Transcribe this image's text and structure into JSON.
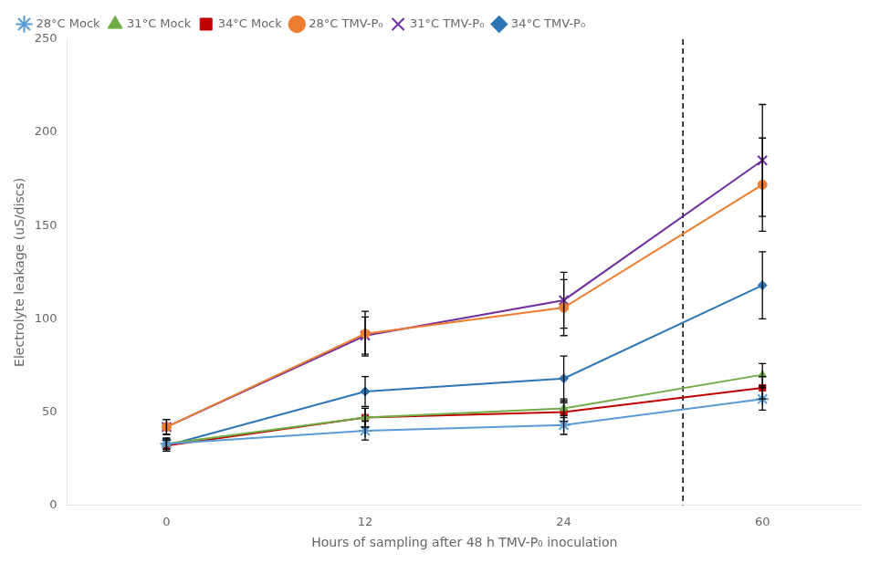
{
  "chart_data": {
    "type": "line",
    "categories": [
      "0",
      "12",
      "24",
      "60"
    ],
    "series": [
      {
        "name": "28°C Mock",
        "color": "#5B9BD5",
        "marker": "star",
        "values": [
          33,
          40,
          43,
          57
        ],
        "yerr": [
          3,
          5,
          5,
          6
        ]
      },
      {
        "name": "31°C Mock",
        "color": "#70AD47",
        "marker": "triangle",
        "values": [
          33,
          47,
          52,
          70
        ],
        "yerr": [
          3,
          5,
          5,
          6
        ]
      },
      {
        "name": "34°C Mock",
        "color": "#C00000",
        "marker": "square",
        "values": [
          32,
          47,
          50,
          63
        ],
        "yerr": [
          3,
          5,
          5,
          6
        ]
      },
      {
        "name": "28°C TMV-P₀",
        "color": "#ED7D31",
        "marker": "circle",
        "values": [
          42,
          92,
          106,
          172
        ],
        "yerr": [
          4,
          12,
          15,
          25
        ]
      },
      {
        "name": "31°C TMV-P₀",
        "color": "#7030A0",
        "marker": "x",
        "values": [
          42,
          91,
          110,
          185
        ],
        "yerr": [
          4,
          10,
          15,
          30
        ]
      },
      {
        "name": "34°C TMV-P₀",
        "color": "#2E75B6",
        "marker": "diamond",
        "values": [
          32,
          61,
          68,
          118
        ],
        "yerr": [
          3,
          8,
          12,
          18
        ]
      }
    ],
    "xlabel": "Hours of sampling after 48 h TMV-P₀ inoculation",
    "ylabel": "Electrolyte leakage (uS/discs)",
    "ylim": [
      0,
      250
    ],
    "yticks": [
      0,
      50,
      100,
      150,
      200,
      250
    ],
    "grid": false,
    "legend": "upper left",
    "reference_line": {
      "x": 2.6,
      "line_style": "dashed",
      "color": "#000000"
    }
  }
}
